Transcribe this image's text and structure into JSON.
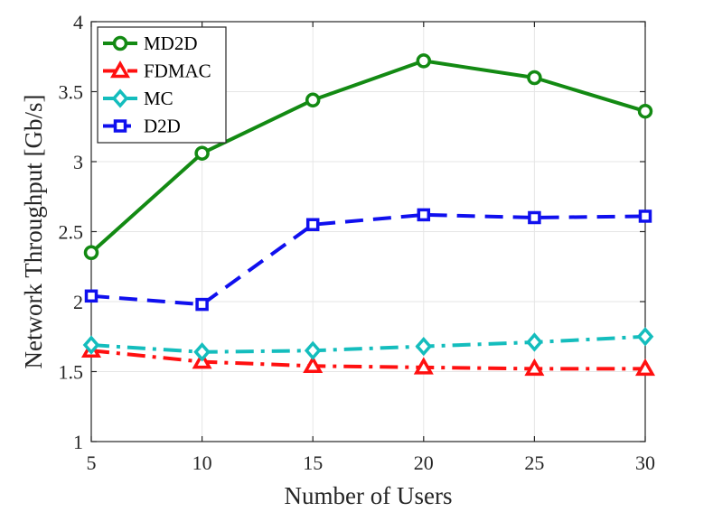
{
  "chart_data": {
    "type": "line",
    "title": "",
    "xlabel": "Number of Users",
    "ylabel": "Network Throughput [Gb/s]",
    "x": [
      5,
      10,
      15,
      20,
      25,
      30
    ],
    "xlim": [
      5,
      30
    ],
    "ylim": [
      1,
      4
    ],
    "xticks": [
      5,
      10,
      15,
      20,
      25,
      30
    ],
    "yticks": [
      1,
      1.5,
      2,
      2.5,
      3,
      3.5,
      4
    ],
    "xtick_labels": [
      "5",
      "10",
      "15",
      "20",
      "25",
      "30"
    ],
    "ytick_labels": [
      "1",
      "1.5",
      "2",
      "2.5",
      "3",
      "3.5",
      "4"
    ],
    "grid": true,
    "legend_position": "top-left",
    "series": [
      {
        "name": "MD2D",
        "values": [
          2.35,
          3.06,
          3.44,
          3.72,
          3.6,
          3.36
        ],
        "color": "#138a13",
        "marker": "circle",
        "line_style": "solid"
      },
      {
        "name": "FDMAC",
        "values": [
          1.65,
          1.57,
          1.54,
          1.53,
          1.52,
          1.52
        ],
        "color": "#ff1010",
        "marker": "triangle",
        "line_style": "dashdot"
      },
      {
        "name": "MC",
        "values": [
          1.69,
          1.64,
          1.65,
          1.68,
          1.71,
          1.75
        ],
        "color": "#14bdbd",
        "marker": "diamond",
        "line_style": "dashdot"
      },
      {
        "name": "D2D",
        "values": [
          2.04,
          1.98,
          2.55,
          2.62,
          2.6,
          2.61
        ],
        "color": "#1010ee",
        "marker": "square",
        "line_style": "dashed"
      }
    ]
  }
}
